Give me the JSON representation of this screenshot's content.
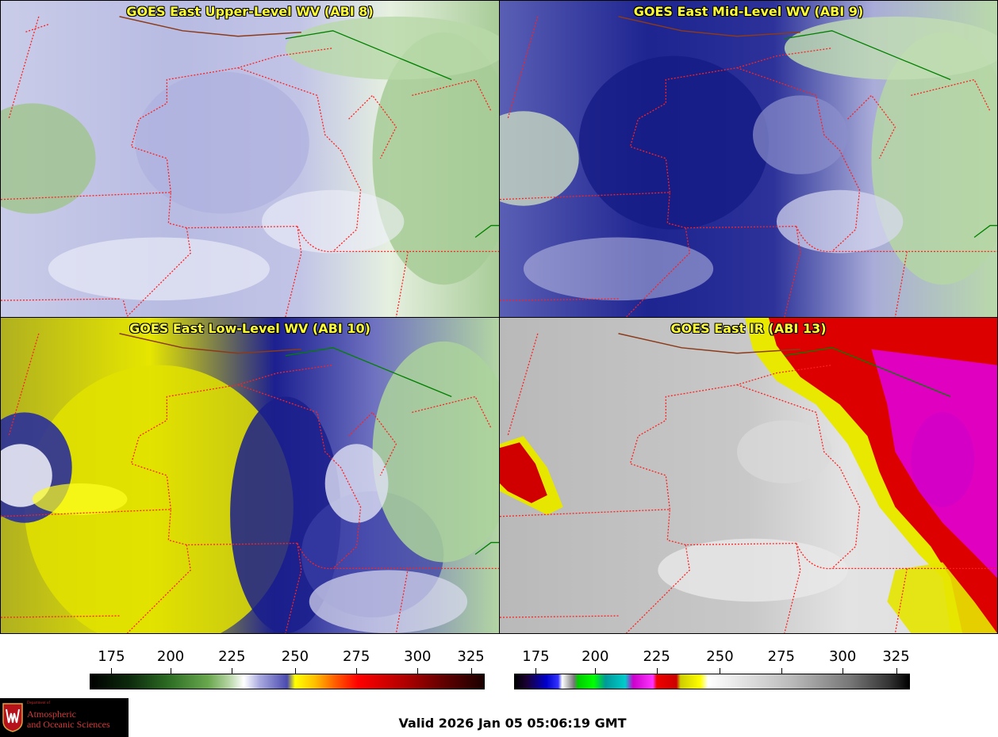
{
  "panels": [
    {
      "id": "upper",
      "title": "GOES East Upper-Level WV (ABI 8)"
    },
    {
      "id": "mid",
      "title": "GOES East Mid-Level WV (ABI 9)"
    },
    {
      "id": "low",
      "title": "GOES East Low-Level WV (ABI 10)"
    },
    {
      "id": "ir",
      "title": "GOES East IR (ABI 13)"
    }
  ],
  "colorbars": {
    "wv": {
      "ticks": [
        "175",
        "200",
        "225",
        "250",
        "275",
        "300",
        "325"
      ]
    },
    "ir": {
      "ticks": [
        "175",
        "200",
        "225",
        "250",
        "275",
        "300",
        "325"
      ]
    }
  },
  "logo": {
    "department": "Department of",
    "line1": "Atmospheric",
    "line2": "and Oceanic Sciences"
  },
  "valid_time": "Valid 2026 Jan 05 05:06:19 GMT",
  "colors": {
    "state_borders": "#ff2020",
    "country_border": "#008000",
    "coastline": "#8b3a1a",
    "title_text": "#ffff33"
  }
}
